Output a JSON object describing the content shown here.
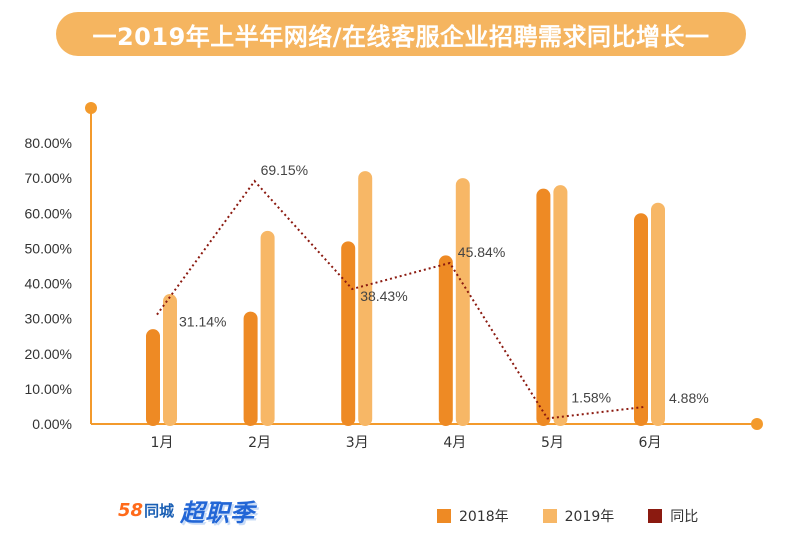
{
  "title": "一2019年上半年网络/在线客服企业招聘需求同比增长一",
  "brand": {
    "part1": "58",
    "part2": "同城",
    "part3": "超职季"
  },
  "colors": {
    "s2018": "#ee8a24",
    "s2019": "#f7b766",
    "yoy": "#8b1a10",
    "axis": "#f39a2c",
    "title_bg": "#f5b560"
  },
  "chart_data": {
    "type": "bar",
    "title": "一2019年上半年网络/在线客服企业招聘需求同比增长一",
    "categories": [
      "1月",
      "2月",
      "3月",
      "4月",
      "5月",
      "6月"
    ],
    "series": [
      {
        "name": "2018年",
        "values": [
          27,
          32,
          52,
          48,
          67,
          60
        ]
      },
      {
        "name": "2019年",
        "values": [
          37,
          55,
          72,
          70,
          68,
          63
        ]
      },
      {
        "name": "同比",
        "type": "line",
        "values": [
          31.14,
          69.15,
          38.43,
          45.84,
          1.58,
          4.88
        ],
        "labels": [
          "31.14%",
          "69.15%",
          "38.43%",
          "45.84%",
          "1.58%",
          "4.88%"
        ]
      }
    ],
    "yticks": [
      "0.00%",
      "10.00%",
      "20.00%",
      "30.00%",
      "40.00%",
      "50.00%",
      "60.00%",
      "70.00%",
      "80.00%"
    ],
    "ylim": [
      0,
      80
    ],
    "grid": false,
    "legend_position": "bottom-right"
  }
}
